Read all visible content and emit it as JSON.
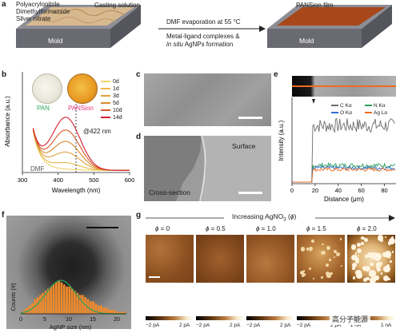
{
  "panel_labels": {
    "a": "a",
    "b": "b",
    "c": "c",
    "d": "d",
    "e": "e",
    "f": "f",
    "g": "g"
  },
  "panel_a": {
    "ingredients": [
      "Polyacrylonitrile",
      "Dimethylformamide",
      "Silver nitrate"
    ],
    "casting_label": "Casting solution",
    "film_label": "PANSion film",
    "mold_label": "Mold",
    "arrow_top": "DMF evaporation at 55 °C",
    "arrow_bottom_1": "Metal-ligand complexes &",
    "arrow_bottom_2_italic": "in situ",
    "arrow_bottom_2_rest": " AgNPs formation"
  },
  "panel_b": {
    "pan_label": "PAN",
    "pansion_label": "PANSion",
    "dmf_label": "DMF",
    "peak_label": "@422 nm",
    "colors": {
      "pan": "#2fa65a",
      "pansion": "#e2367a"
    }
  },
  "chart_data": [
    {
      "type": "line",
      "xlabel": "Wavelength (nm)",
      "ylabel": "Absorbance (a.u.)",
      "xlim": [
        300,
        600
      ],
      "x_ticks": [
        300,
        400,
        500,
        600
      ],
      "legend_placement": "top-right",
      "grid": false,
      "series": [
        {
          "name": "0d",
          "color": "#f0d36b",
          "peak": 0.01
        },
        {
          "name": "1d",
          "color": "#e9b84c",
          "peak": 0.1
        },
        {
          "name": "3d",
          "color": "#dfa23a",
          "peak": 0.25
        },
        {
          "name": "5d",
          "color": "#d88a2c",
          "peak": 0.4
        },
        {
          "name": "10d",
          "color": "#d8582a",
          "peak": 0.56
        },
        {
          "name": "14d",
          "color": "#d41f2e",
          "peak": 0.74
        }
      ]
    },
    {
      "type": "line",
      "xlabel": "Distance (μm)",
      "ylabel": "Intensity (a.u.)",
      "xlim": [
        0,
        90
      ],
      "x_ticks": [
        0,
        20,
        40,
        60,
        80
      ],
      "legend_placement": "top-right",
      "grid": false,
      "series": [
        {
          "name": "C Kα",
          "color": "#6d6d6d",
          "level": 0.7
        },
        {
          "name": "N Kα",
          "color": "#2aa05a",
          "level": 0.22
        },
        {
          "name": "O Kα",
          "color": "#2f6fd1",
          "level": 0.19
        },
        {
          "name": "Ag Lα",
          "color": "#ef6b1f",
          "level": 0.17
        }
      ]
    },
    {
      "type": "bar",
      "xlabel": "AgNP size (nm)",
      "ylabel": "Counts (#)",
      "x_ticks": [
        0,
        5,
        10,
        15,
        20
      ],
      "xlim": [
        0,
        22
      ],
      "values": [
        1,
        2,
        3,
        4,
        5,
        7,
        8,
        9,
        10,
        11,
        12,
        13,
        14,
        15,
        16,
        15,
        14,
        13,
        13,
        12,
        11,
        10,
        9,
        9,
        8,
        7,
        6,
        6,
        5,
        4,
        4,
        3,
        3,
        2,
        2,
        2,
        1,
        1,
        1,
        1
      ],
      "bar_color": "#ef8a2c",
      "fit_color": "#2aa05a"
    }
  ],
  "panel_c": {},
  "panel_d": {
    "surface_label": "Surface",
    "cross_label": "Cross-section"
  },
  "panel_g": {
    "arrow_title": "Increasing AgNO",
    "arrow_title_sub": "3",
    "arrow_title_end": " (",
    "arrow_title_phi": "ϕ",
    "arrow_title_close": ")",
    "maps": [
      {
        "phi": "ϕ",
        "eq": " = 0",
        "min": "−2 pA",
        "max": "2 pA"
      },
      {
        "phi": "ϕ",
        "eq": " = 0.5",
        "min": "−2 pA",
        "max": "2 pA"
      },
      {
        "phi": "ϕ",
        "eq": " = 1.0",
        "min": "−2 pA",
        "max": "2 pA"
      },
      {
        "phi": "ϕ",
        "eq": " = 1.5",
        "min": "−2 pA",
        "max": "2 pA"
      },
      {
        "phi": "ϕ",
        "eq": " = 2.0",
        "min": "−1 nA",
        "max": "1 nA"
      }
    ]
  },
  "watermark": "高分子能源"
}
